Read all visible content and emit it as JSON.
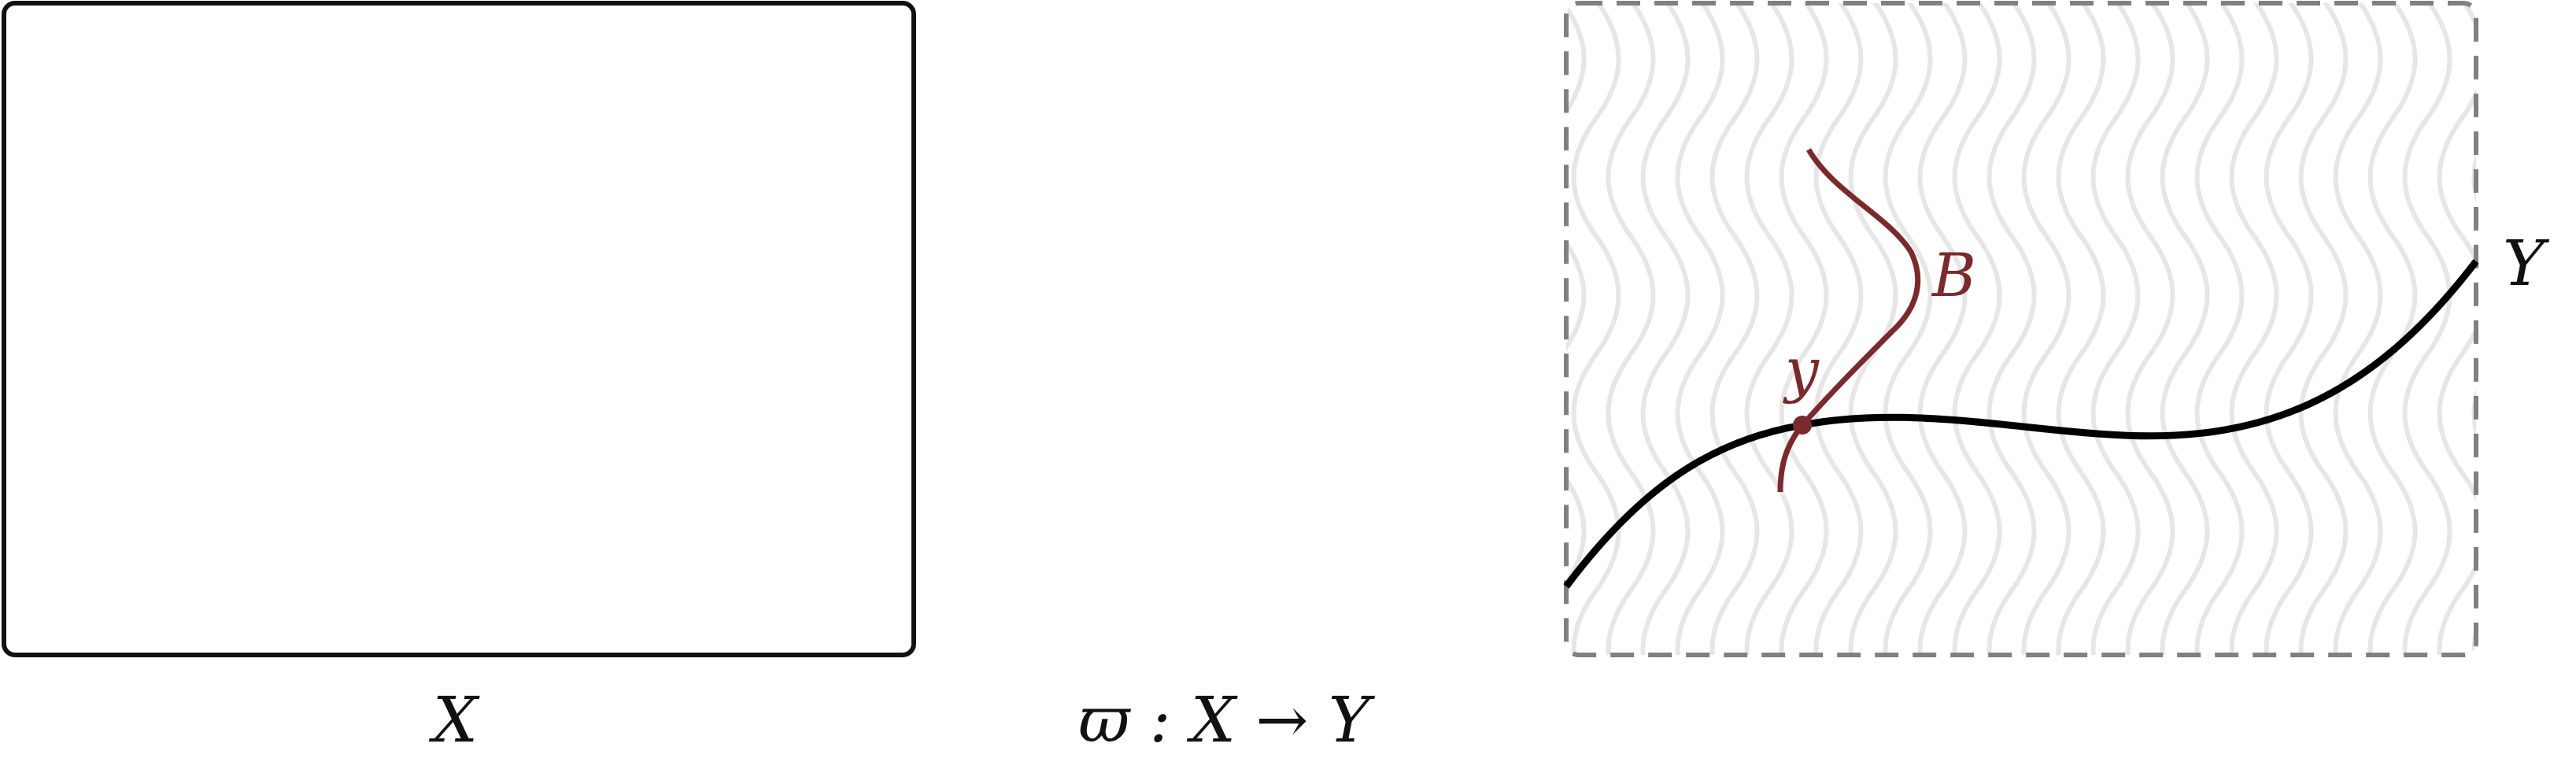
{
  "labels": {
    "domain_space": "X",
    "target_space": "Y",
    "map": "ϖ : X → Y",
    "subvariety": "B",
    "point": "y"
  },
  "colors": {
    "outline": "#111111",
    "dashed_border": "#808080",
    "fibers": "#e6e6e6",
    "accent": "#7a2a2c"
  }
}
